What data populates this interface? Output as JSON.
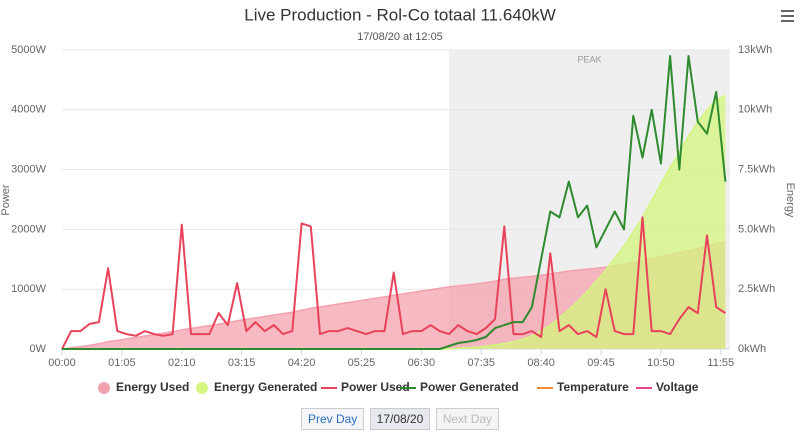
{
  "chart_data": {
    "type": "line",
    "title": "Live Production - Rol-Co totaal 11.640kW",
    "subtitle": "17/08/20 at 12:05",
    "ylabel": "Power",
    "y2label": "Energy",
    "xlim": [
      0,
      725
    ],
    "xticks": [
      {
        "value": 0,
        "label": "00:00"
      },
      {
        "value": 65,
        "label": "01:05"
      },
      {
        "value": 130,
        "label": "02:10"
      },
      {
        "value": 195,
        "label": "03:15"
      },
      {
        "value": 260,
        "label": "04:20"
      },
      {
        "value": 325,
        "label": "05:25"
      },
      {
        "value": 390,
        "label": "06:30"
      },
      {
        "value": 455,
        "label": "07:35"
      },
      {
        "value": 520,
        "label": "08:40"
      },
      {
        "value": 585,
        "label": "09:45"
      },
      {
        "value": 650,
        "label": "10:50"
      },
      {
        "value": 715,
        "label": "11:55"
      }
    ],
    "ylim": [
      0,
      5000
    ],
    "yticks": [
      {
        "value": 0,
        "label": "0W"
      },
      {
        "value": 1000,
        "label": "1000W"
      },
      {
        "value": 2000,
        "label": "2000W"
      },
      {
        "value": 3000,
        "label": "3000W"
      },
      {
        "value": 4000,
        "label": "4000W"
      },
      {
        "value": 5000,
        "label": "5000W"
      }
    ],
    "y2lim": [
      0,
      12.5
    ],
    "y2ticks": [
      {
        "value": 0,
        "label": "0kWh"
      },
      {
        "value": 2.5,
        "label": "2.5kWh"
      },
      {
        "value": 5,
        "label": "5.0kWh"
      },
      {
        "value": 7.5,
        "label": "7.5kWh"
      },
      {
        "value": 10,
        "label": "10kWh"
      },
      {
        "value": 12.5,
        "label": "13kWh"
      }
    ],
    "grid": true,
    "band": {
      "from": 420,
      "to": 725,
      "label": "PEAK",
      "color": "#efefef"
    },
    "x": [
      0,
      10,
      20,
      30,
      40,
      50,
      60,
      70,
      80,
      90,
      100,
      110,
      120,
      130,
      140,
      150,
      160,
      170,
      180,
      190,
      200,
      210,
      220,
      230,
      240,
      250,
      260,
      270,
      280,
      290,
      300,
      310,
      320,
      330,
      340,
      350,
      360,
      370,
      380,
      390,
      400,
      410,
      420,
      430,
      440,
      450,
      460,
      470,
      480,
      490,
      500,
      510,
      520,
      530,
      540,
      550,
      560,
      570,
      580,
      590,
      600,
      610,
      620,
      630,
      640,
      650,
      660,
      670,
      680,
      690,
      700,
      710,
      720
    ],
    "series": [
      {
        "name": "Energy Used",
        "kind": "area",
        "axis": "y2",
        "color": "#f4a1ae",
        "values": [
          0,
          0.05,
          0.1,
          0.15,
          0.22,
          0.3,
          0.36,
          0.42,
          0.48,
          0.54,
          0.6,
          0.66,
          0.72,
          0.8,
          0.86,
          0.92,
          0.98,
          1.04,
          1.1,
          1.18,
          1.24,
          1.3,
          1.36,
          1.42,
          1.48,
          1.54,
          1.62,
          1.7,
          1.76,
          1.82,
          1.88,
          1.94,
          2.0,
          2.06,
          2.12,
          2.18,
          2.24,
          2.3,
          2.36,
          2.42,
          2.48,
          2.54,
          2.6,
          2.64,
          2.68,
          2.72,
          2.78,
          2.84,
          2.92,
          2.96,
          3.0,
          3.04,
          3.08,
          3.14,
          3.2,
          3.26,
          3.3,
          3.34,
          3.38,
          3.42,
          3.48,
          3.54,
          3.62,
          3.7,
          3.78,
          3.86,
          3.94,
          4.02,
          4.1,
          4.2,
          4.3,
          4.4,
          4.5
        ]
      },
      {
        "name": "Energy Generated",
        "kind": "area",
        "axis": "y2",
        "color": "#d4f57e",
        "values": [
          0,
          0,
          0,
          0,
          0,
          0,
          0,
          0,
          0,
          0,
          0,
          0,
          0,
          0,
          0,
          0,
          0,
          0,
          0,
          0,
          0,
          0,
          0,
          0,
          0,
          0,
          0,
          0,
          0,
          0,
          0,
          0,
          0,
          0,
          0,
          0,
          0,
          0,
          0,
          0,
          0,
          0,
          0.01,
          0.03,
          0.05,
          0.08,
          0.12,
          0.17,
          0.23,
          0.3,
          0.4,
          0.55,
          0.75,
          1.0,
          1.3,
          1.65,
          2.0,
          2.4,
          2.85,
          3.3,
          3.8,
          4.3,
          4.9,
          5.5,
          6.2,
          6.9,
          7.6,
          8.2,
          8.9,
          9.5,
          10.0,
          10.4,
          10.6
        ]
      },
      {
        "name": "Power Used",
        "kind": "line",
        "color": "#e8435a",
        "values": [
          0,
          300,
          300,
          420,
          450,
          1350,
          300,
          250,
          220,
          300,
          250,
          220,
          250,
          2080,
          250,
          250,
          250,
          600,
          400,
          1100,
          300,
          450,
          300,
          400,
          250,
          300,
          2100,
          2050,
          250,
          300,
          300,
          350,
          300,
          250,
          300,
          300,
          1280,
          250,
          300,
          300,
          400,
          300,
          250,
          400,
          300,
          250,
          350,
          500,
          2050,
          250,
          250,
          300,
          200,
          1600,
          300,
          400,
          250,
          300,
          200,
          1000,
          300,
          250,
          250,
          2200,
          300,
          300,
          250,
          500,
          700,
          600,
          1900,
          700,
          600
        ]
      },
      {
        "name": "Power Generated",
        "kind": "line",
        "color": "#2e8b2e",
        "values": [
          0,
          0,
          0,
          0,
          0,
          0,
          0,
          0,
          0,
          0,
          0,
          0,
          0,
          0,
          0,
          0,
          0,
          0,
          0,
          0,
          0,
          0,
          0,
          0,
          0,
          0,
          0,
          0,
          0,
          0,
          0,
          0,
          0,
          0,
          0,
          0,
          0,
          0,
          0,
          0,
          0,
          0,
          50,
          100,
          120,
          150,
          200,
          350,
          400,
          450,
          450,
          700,
          1500,
          2300,
          2200,
          2800,
          2200,
          2400,
          1700,
          2000,
          2300,
          2000,
          3900,
          3200,
          4000,
          3100,
          4900,
          3000,
          4900,
          3800,
          3600,
          4300,
          2800
        ]
      },
      {
        "name": "Temperature",
        "kind": "line",
        "color": "#f28a3b"
      },
      {
        "name": "Voltage",
        "kind": "line",
        "color": "#e8438f"
      }
    ],
    "buttons": [
      "Prev Day",
      "17/08/20",
      "Next Day"
    ]
  }
}
